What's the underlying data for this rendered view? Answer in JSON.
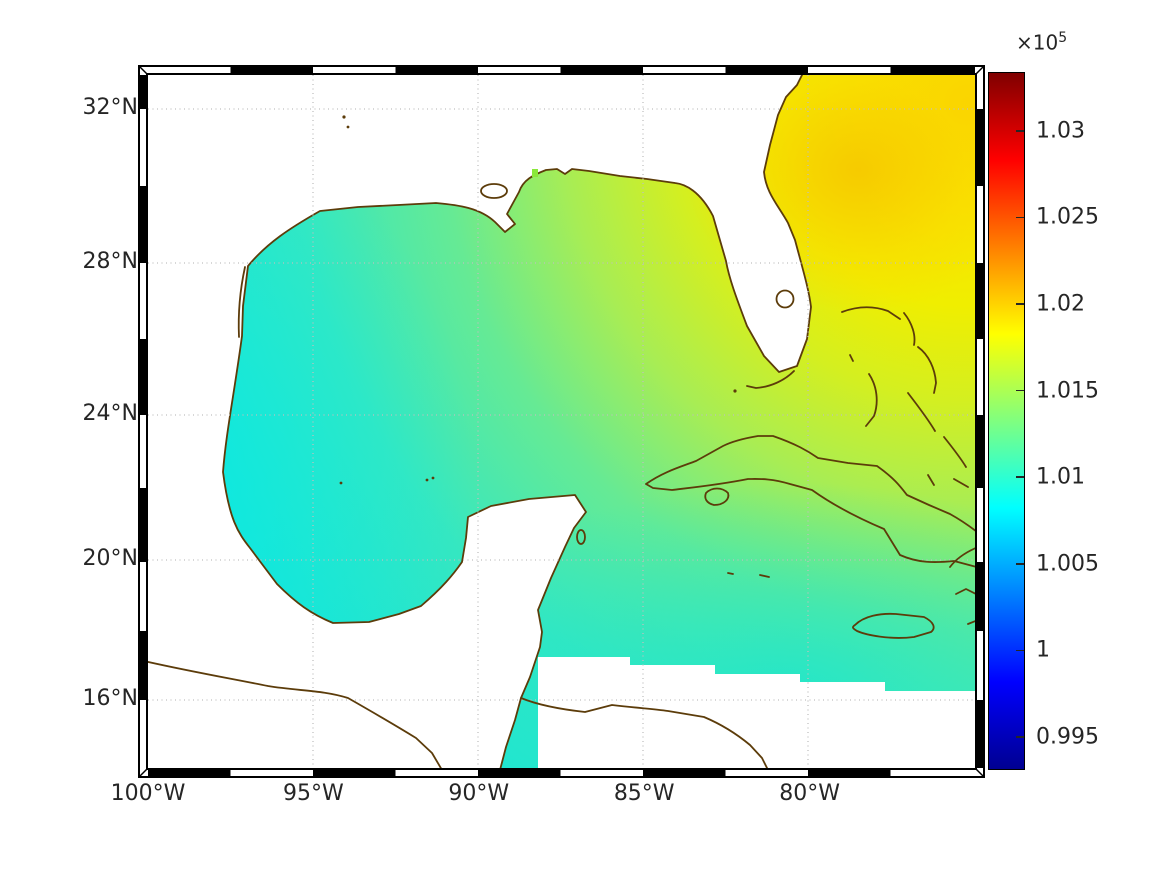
{
  "figure": {
    "background_color": "#ffffff",
    "text_color": "#262626",
    "coastline_color": "#5c3c0a",
    "gridline_color": "#bfbfbf"
  },
  "map": {
    "x_axis": {
      "ticks": [
        {
          "label": "100°W",
          "lon": 100
        },
        {
          "label": "95°W",
          "lon": 95
        },
        {
          "label": "90°W",
          "lon": 90
        },
        {
          "label": "85°W",
          "lon": 85
        },
        {
          "label": "80°W",
          "lon": 80
        }
      ]
    },
    "y_axis": {
      "ticks": [
        {
          "label": "32°N",
          "lat": 32
        },
        {
          "label": "28°N",
          "lat": 28
        },
        {
          "label": "24°N",
          "lat": 24
        },
        {
          "label": "20°N",
          "lat": 20
        },
        {
          "label": "16°N",
          "lat": 16
        }
      ]
    }
  },
  "colorbar": {
    "exponent_prefix": "×10",
    "exponent": "5",
    "colormap": "jet",
    "vmin": 0.9931,
    "vmax": 1.0334,
    "colormap_stops": [
      "#000091",
      "#0000ff",
      "#00ffff",
      "#ffff00",
      "#ff0000",
      "#800000"
    ],
    "ticks": [
      {
        "label": "1.03",
        "value": 1.03
      },
      {
        "label": "1.025",
        "value": 1.025
      },
      {
        "label": "1.02",
        "value": 1.02
      },
      {
        "label": "1.015",
        "value": 1.015
      },
      {
        "label": "1.01",
        "value": 1.01
      },
      {
        "label": "1.005",
        "value": 1.005
      },
      {
        "label": "1",
        "value": 1.0
      },
      {
        "label": "0.995",
        "value": 0.995
      }
    ]
  },
  "chart_data": {
    "type": "heatmap",
    "title": "",
    "xlabel": "",
    "ylabel": "",
    "region": "Gulf of Mexico, Florida, Cuba, Bahamas, NW Caribbean",
    "x_tick_labels": [
      "100°W",
      "95°W",
      "90°W",
      "85°W",
      "80°W"
    ],
    "y_tick_labels": [
      "16°N",
      "20°N",
      "24°N",
      "28°N",
      "32°N"
    ],
    "lon_range_deg_west": [
      100,
      75
    ],
    "lat_range_deg_north": [
      14.1,
      33.0
    ],
    "grid": true,
    "colorbar": {
      "scale_label": "×10^5",
      "tick_labels": [
        "0.995",
        "1",
        "1.005",
        "1.01",
        "1.015",
        "1.02",
        "1.025",
        "1.03"
      ],
      "range_approx_x1e5": [
        0.9931,
        1.0334
      ],
      "colormap": "jet",
      "position": "right"
    },
    "field_samples_x1e5": [
      {
        "lon_w": 96,
        "lat_n": 25,
        "value": 1.009
      },
      {
        "lon_w": 93,
        "lat_n": 21,
        "value": 1.0095
      },
      {
        "lon_w": 90,
        "lat_n": 24,
        "value": 1.01
      },
      {
        "lon_w": 87,
        "lat_n": 21,
        "value": 1.01
      },
      {
        "lon_w": 86,
        "lat_n": 29,
        "value": 1.015
      },
      {
        "lon_w": 83,
        "lat_n": 26,
        "value": 1.014
      },
      {
        "lon_w": 80,
        "lat_n": 27,
        "value": 1.017
      },
      {
        "lon_w": 79,
        "lat_n": 31,
        "value": 1.02
      },
      {
        "lon_w": 77.5,
        "lat_n": 30.5,
        "value": 1.021
      },
      {
        "lon_w": 79,
        "lat_n": 19,
        "value": 1.01
      },
      {
        "lon_w": 76,
        "lat_n": 17,
        "value": 1.009
      }
    ],
    "notes": "Smooth scalar field (sea-level-pressure-like, Pa) over ocean; land and out-of-domain areas are white; maximum in NW Atlantic, minimum in western Gulf."
  }
}
